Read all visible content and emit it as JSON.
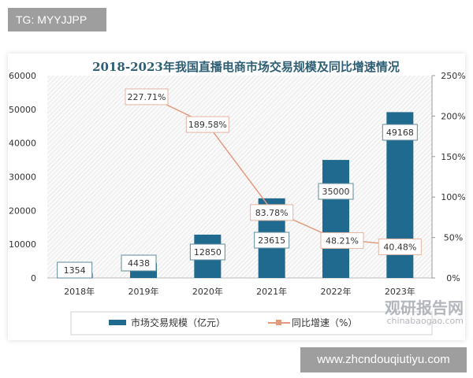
{
  "badge": "TG: MYYJJPP",
  "site": "www.zhcndouqiutiyu.com",
  "watermark": {
    "name": "观研报告网",
    "url": "chinabaogao.com"
  },
  "chart_data": {
    "type": "bar+line",
    "title": "2018-2023年我国直播电商市场交易规模及同比增速情况",
    "categories": [
      "2018年",
      "2019年",
      "2020年",
      "2021年",
      "2022年",
      "2023年"
    ],
    "series": [
      {
        "name": "市场交易规模（亿元）",
        "type": "bar",
        "axis": "left",
        "values": [
          1354,
          4438,
          12850,
          23615,
          35000,
          49168
        ],
        "color": "#1f6a8e"
      },
      {
        "name": "同比增速（%）",
        "type": "line",
        "axis": "right",
        "values": [
          null,
          227.71,
          189.58,
          83.78,
          48.21,
          40.48
        ],
        "labels": [
          "",
          "227.71%",
          "189.58%",
          "83.78%",
          "48.21%",
          "40.48%"
        ],
        "color": "#e39a7c"
      }
    ],
    "y_left": {
      "range": [
        0,
        60000
      ],
      "ticks": [
        "0",
        "10000",
        "20000",
        "30000",
        "40000",
        "50000",
        "60000"
      ]
    },
    "y_right": {
      "range": [
        0,
        250
      ],
      "ticks": [
        "0%",
        "50%",
        "100%",
        "150%",
        "200%",
        "250%"
      ]
    },
    "legend": "bottom",
    "grid": false
  }
}
